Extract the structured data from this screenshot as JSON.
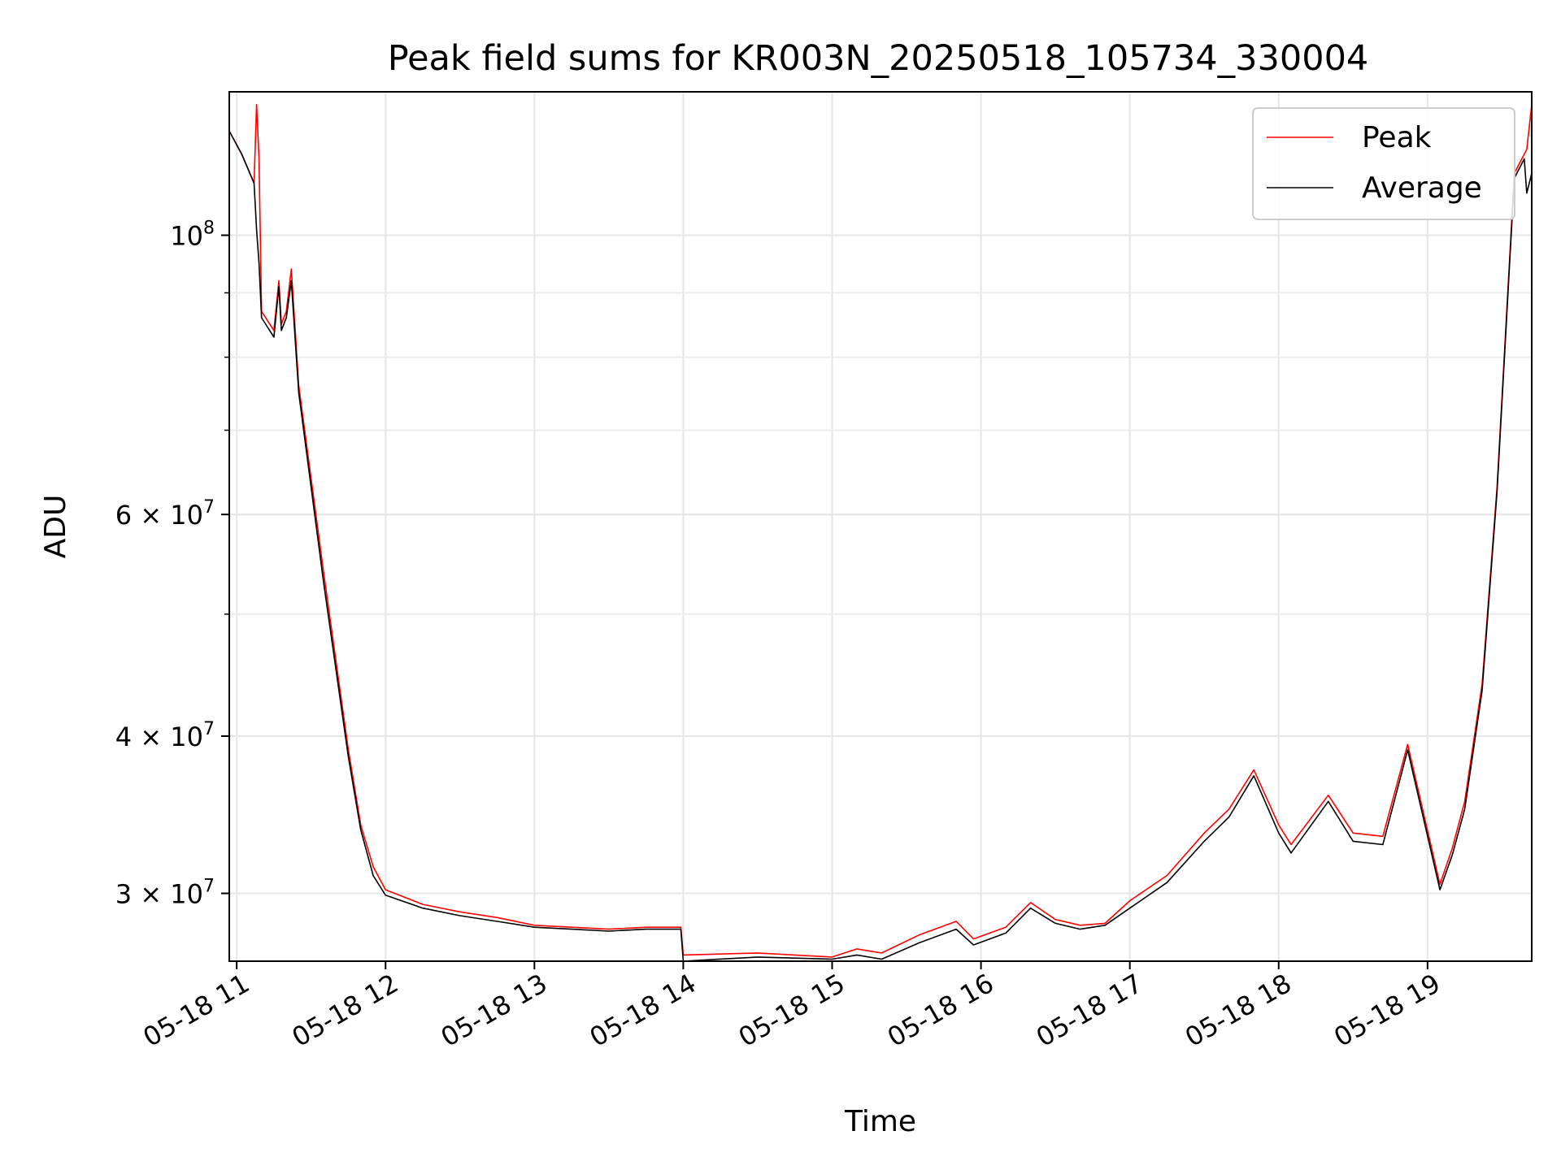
{
  "chart_data": {
    "type": "line",
    "title": "Peak field sums for KR003N_20250518_105734_330004",
    "xlabel": "Time",
    "ylabel": "ADU",
    "yscale": "log",
    "xlim": [
      "05-18 10:57",
      "05-18 19:42"
    ],
    "ylim": [
      26500000,
      130000000
    ],
    "grid": true,
    "legend_position": "top-right",
    "x_tick_labels": [
      "05-18 11",
      "05-18 12",
      "05-18 13",
      "05-18 14",
      "05-18 15",
      "05-18 16",
      "05-18 17",
      "05-18 18",
      "05-18 19"
    ],
    "y_ticks": [
      {
        "value": 30000000,
        "mantissa": "3",
        "exponent": "7"
      },
      {
        "value": 40000000,
        "mantissa": "4",
        "exponent": "7"
      },
      {
        "value": 60000000,
        "mantissa": "6",
        "exponent": "7"
      },
      {
        "value": 100000000,
        "mantissa": "",
        "exponent": "8"
      }
    ],
    "x": [
      "10:57",
      "11:02",
      "11:07",
      "11:08",
      "11:09",
      "11:10",
      "11:15",
      "11:17",
      "11:18",
      "11:20",
      "11:22",
      "11:25",
      "11:35",
      "11:45",
      "11:50",
      "11:55",
      "12:00",
      "12:15",
      "12:30",
      "12:45",
      "13:00",
      "13:15",
      "13:30",
      "13:45",
      "13:59",
      "14:00",
      "14:30",
      "15:00",
      "15:10",
      "15:20",
      "15:35",
      "15:50",
      "15:57",
      "16:10",
      "16:20",
      "16:30",
      "16:40",
      "16:50",
      "17:00",
      "17:15",
      "17:30",
      "17:40",
      "17:50",
      "18:00",
      "18:05",
      "18:20",
      "18:30",
      "18:42",
      "18:52",
      "19:05",
      "19:10",
      "19:15",
      "19:22",
      "19:28",
      "19:35",
      "19:39",
      "19:40",
      "19:42"
    ],
    "series": [
      {
        "name": "Peak",
        "color": "#ff0000",
        "values": [
          121000000,
          116000000,
          110000000,
          127000000,
          115000000,
          87000000,
          84000000,
          92000000,
          85000000,
          87000000,
          94000000,
          76000000,
          54000000,
          39000000,
          34000000,
          31500000,
          30200000,
          29400000,
          29000000,
          28700000,
          28300000,
          28200000,
          28100000,
          28200000,
          28200000,
          26800000,
          26900000,
          26700000,
          27100000,
          26900000,
          27800000,
          28500000,
          27600000,
          28200000,
          29500000,
          28600000,
          28300000,
          28400000,
          29600000,
          31000000,
          33500000,
          35000000,
          37600000,
          34000000,
          32800000,
          35900000,
          33500000,
          33300000,
          39400000,
          30500000,
          32600000,
          35500000,
          44000000,
          63000000,
          112000000,
          116000000,
          117000000,
          127000000
        ]
      },
      {
        "name": "Average",
        "color": "#000000",
        "values": [
          121000000,
          116000000,
          110000000,
          101000000,
          95000000,
          86000000,
          83000000,
          91000000,
          84000000,
          86000000,
          92000000,
          75000000,
          53000000,
          38500000,
          33700000,
          31000000,
          29900000,
          29200000,
          28800000,
          28500000,
          28200000,
          28100000,
          28000000,
          28100000,
          28100000,
          26500000,
          26700000,
          26600000,
          26800000,
          26600000,
          27400000,
          28100000,
          27300000,
          27900000,
          29200000,
          28400000,
          28100000,
          28300000,
          29200000,
          30600000,
          33000000,
          34500000,
          37200000,
          33500000,
          32300000,
          35500000,
          33000000,
          32800000,
          39000000,
          30200000,
          32200000,
          35000000,
          43500000,
          62500000,
          111000000,
          115000000,
          108000000,
          112000000
        ]
      }
    ]
  }
}
